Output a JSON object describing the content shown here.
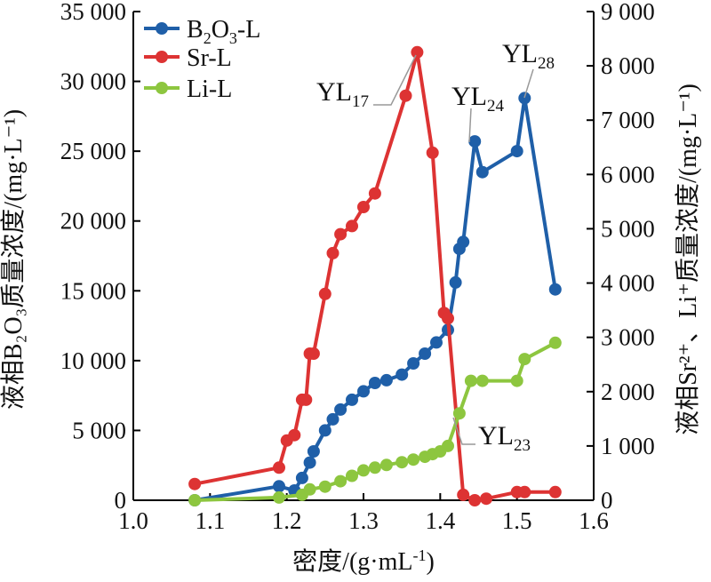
{
  "chart_data": {
    "type": "line",
    "xlabel": "密度/(g·mL",
    "xlabel_sup": "-1",
    "xlabel_end": ")",
    "ylabel_left": "液相B₂O₃质量浓度/(mg·L⁻¹)",
    "ylabel_right": "液相Sr²⁺、Li⁺质量浓度/(mg·L⁻¹)",
    "xlim": [
      1.0,
      1.6
    ],
    "ylim_left": [
      0,
      35000
    ],
    "ylim_right": [
      0,
      9000
    ],
    "x_ticks": [
      "1.0",
      "1.1",
      "1.2",
      "1.3",
      "1.4",
      "1.5",
      "1.6"
    ],
    "y_ticks_left": [
      "0",
      "5 000",
      "10 000",
      "15 000",
      "20 000",
      "25 000",
      "30 000",
      "35 000"
    ],
    "y_ticks_right": [
      "0",
      "1 000",
      "2 000",
      "3 000",
      "4 000",
      "5 000",
      "6 000",
      "7 000",
      "8 000",
      "9 000"
    ],
    "legend_position": "top-left",
    "series": [
      {
        "name": "B2O3-L",
        "name_main": "B",
        "name_sub1": "2",
        "name_mid": "O",
        "name_sub2": "3",
        "name_end": "-L",
        "axis": "left",
        "color": "#1f5fa8",
        "points": [
          [
            1.08,
            0
          ],
          [
            1.19,
            1000
          ],
          [
            1.21,
            700
          ],
          [
            1.22,
            1600
          ],
          [
            1.23,
            2700
          ],
          [
            1.235,
            3500
          ],
          [
            1.25,
            5000
          ],
          [
            1.26,
            5800
          ],
          [
            1.27,
            6500
          ],
          [
            1.285,
            7200
          ],
          [
            1.3,
            7800
          ],
          [
            1.315,
            8400
          ],
          [
            1.33,
            8600
          ],
          [
            1.35,
            9000
          ],
          [
            1.365,
            9800
          ],
          [
            1.38,
            10500
          ],
          [
            1.395,
            11300
          ],
          [
            1.41,
            12200
          ],
          [
            1.42,
            15600
          ],
          [
            1.425,
            18000
          ],
          [
            1.43,
            18500
          ],
          [
            1.445,
            25700
          ],
          [
            1.455,
            23500
          ],
          [
            1.5,
            25000
          ],
          [
            1.51,
            28800
          ],
          [
            1.55,
            15100
          ]
        ]
      },
      {
        "name": "Sr-L",
        "axis": "right",
        "color": "#dd3333",
        "points": [
          [
            1.08,
            300
          ],
          [
            1.19,
            600
          ],
          [
            1.2,
            1100
          ],
          [
            1.21,
            1200
          ],
          [
            1.22,
            1850
          ],
          [
            1.225,
            1850
          ],
          [
            1.23,
            2700
          ],
          [
            1.235,
            2700
          ],
          [
            1.25,
            3800
          ],
          [
            1.26,
            4550
          ],
          [
            1.27,
            4900
          ],
          [
            1.285,
            5050
          ],
          [
            1.3,
            5400
          ],
          [
            1.315,
            5650
          ],
          [
            1.355,
            7450
          ],
          [
            1.37,
            8250
          ],
          [
            1.39,
            6400
          ],
          [
            1.405,
            3450
          ],
          [
            1.41,
            3350
          ],
          [
            1.43,
            100
          ],
          [
            1.445,
            0
          ],
          [
            1.46,
            30
          ],
          [
            1.5,
            150
          ],
          [
            1.51,
            150
          ],
          [
            1.55,
            150
          ]
        ]
      },
      {
        "name": "Li-L",
        "axis": "right",
        "color": "#8dc63f",
        "points": [
          [
            1.08,
            0
          ],
          [
            1.19,
            50
          ],
          [
            1.22,
            100
          ],
          [
            1.23,
            200
          ],
          [
            1.25,
            250
          ],
          [
            1.27,
            350
          ],
          [
            1.285,
            450
          ],
          [
            1.3,
            550
          ],
          [
            1.315,
            600
          ],
          [
            1.33,
            650
          ],
          [
            1.35,
            700
          ],
          [
            1.365,
            750
          ],
          [
            1.38,
            800
          ],
          [
            1.39,
            850
          ],
          [
            1.4,
            900
          ],
          [
            1.41,
            1000
          ],
          [
            1.425,
            1600
          ],
          [
            1.44,
            2200
          ],
          [
            1.455,
            2200
          ],
          [
            1.5,
            2200
          ],
          [
            1.51,
            2600
          ],
          [
            1.55,
            2900
          ]
        ]
      }
    ],
    "annotations": [
      {
        "text_main": "YL",
        "text_sub": "17"
      },
      {
        "text_main": "YL",
        "text_sub": "24"
      },
      {
        "text_main": "YL",
        "text_sub": "28"
      },
      {
        "text_main": "YL",
        "text_sub": "23"
      }
    ]
  }
}
